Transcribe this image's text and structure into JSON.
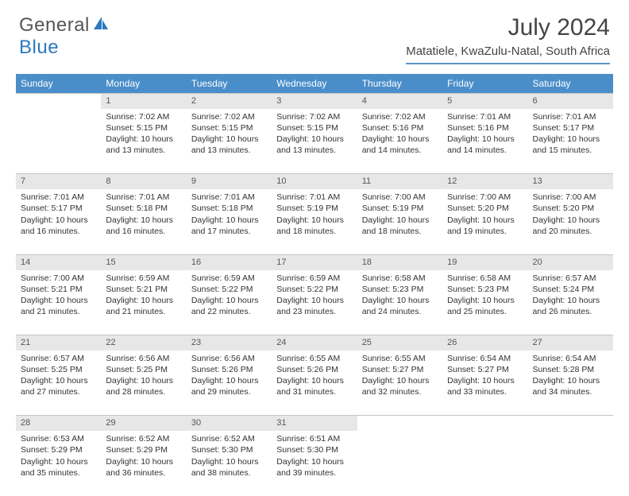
{
  "logo": {
    "text1": "General",
    "text2": "Blue"
  },
  "title": "July 2024",
  "subtitle": "Matatiele, KwaZulu-Natal, South Africa",
  "colors": {
    "header_bg": "#4a8ec9",
    "header_text": "#ffffff",
    "daynum_bg": "#e7e7e7",
    "logo_blue": "#2a7ac0",
    "rule": "#5b94c8"
  },
  "day_headers": [
    "Sunday",
    "Monday",
    "Tuesday",
    "Wednesday",
    "Thursday",
    "Friday",
    "Saturday"
  ],
  "weeks": [
    {
      "nums": [
        "",
        "1",
        "2",
        "3",
        "4",
        "5",
        "6"
      ],
      "cells": [
        null,
        {
          "sunrise": "7:02 AM",
          "sunset": "5:15 PM",
          "dh": 10,
          "dm": 13
        },
        {
          "sunrise": "7:02 AM",
          "sunset": "5:15 PM",
          "dh": 10,
          "dm": 13
        },
        {
          "sunrise": "7:02 AM",
          "sunset": "5:15 PM",
          "dh": 10,
          "dm": 13
        },
        {
          "sunrise": "7:02 AM",
          "sunset": "5:16 PM",
          "dh": 10,
          "dm": 14
        },
        {
          "sunrise": "7:01 AM",
          "sunset": "5:16 PM",
          "dh": 10,
          "dm": 14
        },
        {
          "sunrise": "7:01 AM",
          "sunset": "5:17 PM",
          "dh": 10,
          "dm": 15
        }
      ]
    },
    {
      "nums": [
        "7",
        "8",
        "9",
        "10",
        "11",
        "12",
        "13"
      ],
      "cells": [
        {
          "sunrise": "7:01 AM",
          "sunset": "5:17 PM",
          "dh": 10,
          "dm": 16
        },
        {
          "sunrise": "7:01 AM",
          "sunset": "5:18 PM",
          "dh": 10,
          "dm": 16
        },
        {
          "sunrise": "7:01 AM",
          "sunset": "5:18 PM",
          "dh": 10,
          "dm": 17
        },
        {
          "sunrise": "7:01 AM",
          "sunset": "5:19 PM",
          "dh": 10,
          "dm": 18
        },
        {
          "sunrise": "7:00 AM",
          "sunset": "5:19 PM",
          "dh": 10,
          "dm": 18
        },
        {
          "sunrise": "7:00 AM",
          "sunset": "5:20 PM",
          "dh": 10,
          "dm": 19
        },
        {
          "sunrise": "7:00 AM",
          "sunset": "5:20 PM",
          "dh": 10,
          "dm": 20
        }
      ]
    },
    {
      "nums": [
        "14",
        "15",
        "16",
        "17",
        "18",
        "19",
        "20"
      ],
      "cells": [
        {
          "sunrise": "7:00 AM",
          "sunset": "5:21 PM",
          "dh": 10,
          "dm": 21
        },
        {
          "sunrise": "6:59 AM",
          "sunset": "5:21 PM",
          "dh": 10,
          "dm": 21
        },
        {
          "sunrise": "6:59 AM",
          "sunset": "5:22 PM",
          "dh": 10,
          "dm": 22
        },
        {
          "sunrise": "6:59 AM",
          "sunset": "5:22 PM",
          "dh": 10,
          "dm": 23
        },
        {
          "sunrise": "6:58 AM",
          "sunset": "5:23 PM",
          "dh": 10,
          "dm": 24
        },
        {
          "sunrise": "6:58 AM",
          "sunset": "5:23 PM",
          "dh": 10,
          "dm": 25
        },
        {
          "sunrise": "6:57 AM",
          "sunset": "5:24 PM",
          "dh": 10,
          "dm": 26
        }
      ]
    },
    {
      "nums": [
        "21",
        "22",
        "23",
        "24",
        "25",
        "26",
        "27"
      ],
      "cells": [
        {
          "sunrise": "6:57 AM",
          "sunset": "5:25 PM",
          "dh": 10,
          "dm": 27
        },
        {
          "sunrise": "6:56 AM",
          "sunset": "5:25 PM",
          "dh": 10,
          "dm": 28
        },
        {
          "sunrise": "6:56 AM",
          "sunset": "5:26 PM",
          "dh": 10,
          "dm": 29
        },
        {
          "sunrise": "6:55 AM",
          "sunset": "5:26 PM",
          "dh": 10,
          "dm": 31
        },
        {
          "sunrise": "6:55 AM",
          "sunset": "5:27 PM",
          "dh": 10,
          "dm": 32
        },
        {
          "sunrise": "6:54 AM",
          "sunset": "5:27 PM",
          "dh": 10,
          "dm": 33
        },
        {
          "sunrise": "6:54 AM",
          "sunset": "5:28 PM",
          "dh": 10,
          "dm": 34
        }
      ]
    },
    {
      "nums": [
        "28",
        "29",
        "30",
        "31",
        "",
        "",
        ""
      ],
      "cells": [
        {
          "sunrise": "6:53 AM",
          "sunset": "5:29 PM",
          "dh": 10,
          "dm": 35
        },
        {
          "sunrise": "6:52 AM",
          "sunset": "5:29 PM",
          "dh": 10,
          "dm": 36
        },
        {
          "sunrise": "6:52 AM",
          "sunset": "5:30 PM",
          "dh": 10,
          "dm": 38
        },
        {
          "sunrise": "6:51 AM",
          "sunset": "5:30 PM",
          "dh": 10,
          "dm": 39
        },
        null,
        null,
        null
      ]
    }
  ],
  "labels": {
    "sunrise": "Sunrise:",
    "sunset": "Sunset:",
    "daylight_prefix": "Daylight:",
    "hours_word": "hours",
    "and_word": "and",
    "minutes_word": "minutes."
  }
}
